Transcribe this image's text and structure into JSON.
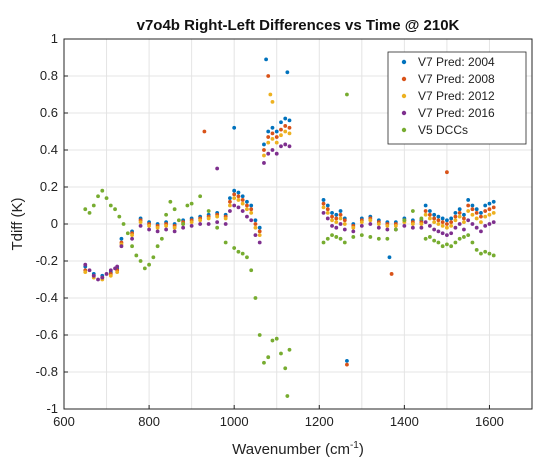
{
  "chart_data": {
    "type": "scatter",
    "title": "v7o4b Right-Left Differences vs Time @ 210K",
    "xlabel": "Wavenumber (cm",
    "xlabel_superscript": "-1",
    "xlabel_suffix": ")",
    "ylabel": "Tdiff (K)",
    "xlim": [
      600,
      1700
    ],
    "ylim": [
      -1,
      1
    ],
    "xticks": [
      600,
      800,
      1000,
      1200,
      1400,
      1600
    ],
    "yticks": [
      -1,
      -0.8,
      -0.6,
      -0.4,
      -0.2,
      0,
      0.2,
      0.4,
      0.6,
      0.8,
      1
    ],
    "xtick_labels": [
      "600",
      "800",
      "1000",
      "1200",
      "1400",
      "1600"
    ],
    "ytick_labels": [
      "-1",
      "-0.8",
      "-0.6",
      "-0.4",
      "-0.2",
      "0",
      "0.2",
      "0.4",
      "0.6",
      "0.8",
      "1"
    ],
    "grid": true,
    "legend_position": "top-right",
    "series": [
      {
        "name": "V7 Pred: 2004",
        "color": "#0072BD",
        "x": [
          650,
          670,
          690,
          710,
          725,
          735,
          760,
          780,
          800,
          820,
          840,
          860,
          880,
          900,
          920,
          940,
          960,
          980,
          990,
          1000,
          1010,
          1020,
          1030,
          1040,
          1050,
          1060,
          1070,
          1080,
          1090,
          1100,
          1110,
          1120,
          1130,
          1210,
          1220,
          1230,
          1240,
          1250,
          1260,
          1280,
          1300,
          1320,
          1340,
          1360,
          1380,
          1400,
          1420,
          1440,
          1450,
          1460,
          1470,
          1480,
          1490,
          1500,
          1510,
          1520,
          1530,
          1540,
          1550,
          1560,
          1570,
          1580,
          1590,
          1600,
          1610,
          1075,
          1125,
          1000,
          1265,
          1365
        ],
        "y": [
          -0.23,
          -0.27,
          -0.28,
          -0.26,
          -0.24,
          -0.08,
          -0.04,
          0.03,
          0.01,
          0.0,
          0.01,
          0.0,
          0.02,
          0.03,
          0.04,
          0.05,
          0.06,
          0.05,
          0.14,
          0.18,
          0.17,
          0.15,
          0.12,
          0.1,
          0.02,
          -0.02,
          0.43,
          0.5,
          0.52,
          0.5,
          0.55,
          0.57,
          0.56,
          0.13,
          0.1,
          0.06,
          0.05,
          0.07,
          0.03,
          0.0,
          0.03,
          0.04,
          0.02,
          0.01,
          0.01,
          0.03,
          0.02,
          0.02,
          0.1,
          0.07,
          0.05,
          0.04,
          0.03,
          0.02,
          0.03,
          0.06,
          0.08,
          0.05,
          0.13,
          0.1,
          0.08,
          0.06,
          0.1,
          0.11,
          0.12,
          0.89,
          0.82,
          0.52,
          -0.74,
          -0.18
        ]
      },
      {
        "name": "V7 Pred: 2008",
        "color": "#D95319",
        "x": [
          650,
          670,
          690,
          710,
          725,
          735,
          760,
          780,
          800,
          820,
          840,
          860,
          880,
          900,
          920,
          940,
          960,
          980,
          990,
          1000,
          1010,
          1020,
          1030,
          1040,
          1050,
          1060,
          1070,
          1080,
          1090,
          1100,
          1110,
          1120,
          1130,
          1210,
          1220,
          1230,
          1240,
          1250,
          1260,
          1280,
          1300,
          1320,
          1340,
          1360,
          1380,
          1400,
          1420,
          1440,
          1450,
          1460,
          1470,
          1480,
          1490,
          1500,
          1510,
          1520,
          1530,
          1540,
          1550,
          1560,
          1570,
          1580,
          1590,
          1600,
          1610,
          1080,
          1500,
          930,
          1265,
          1370
        ],
        "y": [
          -0.25,
          -0.28,
          -0.29,
          -0.27,
          -0.25,
          -0.1,
          -0.05,
          0.02,
          0.0,
          -0.01,
          0.0,
          -0.01,
          0.01,
          0.02,
          0.03,
          0.04,
          0.05,
          0.04,
          0.12,
          0.16,
          0.15,
          0.13,
          0.1,
          0.08,
          0.0,
          -0.04,
          0.4,
          0.47,
          0.49,
          0.47,
          0.51,
          0.53,
          0.52,
          0.11,
          0.08,
          0.04,
          0.03,
          0.05,
          0.02,
          -0.01,
          0.02,
          0.03,
          0.01,
          0.0,
          0.0,
          0.02,
          0.01,
          0.01,
          0.07,
          0.05,
          0.03,
          0.02,
          0.01,
          0.0,
          0.01,
          0.04,
          0.06,
          0.03,
          0.1,
          0.08,
          0.06,
          0.04,
          0.07,
          0.08,
          0.09,
          0.8,
          0.28,
          0.5,
          -0.76,
          -0.27
        ]
      },
      {
        "name": "V7 Pred: 2012",
        "color": "#EDB120",
        "x": [
          650,
          670,
          690,
          710,
          725,
          735,
          760,
          780,
          800,
          820,
          840,
          860,
          880,
          900,
          920,
          940,
          960,
          980,
          990,
          1000,
          1010,
          1020,
          1030,
          1040,
          1050,
          1060,
          1070,
          1080,
          1090,
          1100,
          1110,
          1120,
          1130,
          1210,
          1220,
          1230,
          1240,
          1250,
          1260,
          1280,
          1300,
          1320,
          1340,
          1360,
          1380,
          1400,
          1420,
          1440,
          1450,
          1460,
          1470,
          1480,
          1490,
          1500,
          1510,
          1520,
          1530,
          1540,
          1550,
          1560,
          1570,
          1580,
          1590,
          1600,
          1610,
          1085,
          1090
        ],
        "y": [
          -0.26,
          -0.29,
          -0.3,
          -0.28,
          -0.26,
          -0.11,
          -0.06,
          0.01,
          -0.01,
          -0.02,
          -0.01,
          -0.02,
          0.0,
          0.01,
          0.02,
          0.03,
          0.04,
          0.03,
          0.1,
          0.14,
          0.13,
          0.11,
          0.08,
          0.06,
          -0.02,
          -0.06,
          0.37,
          0.44,
          0.46,
          0.44,
          0.48,
          0.5,
          0.49,
          0.09,
          0.06,
          0.02,
          0.01,
          0.03,
          0.0,
          -0.02,
          0.01,
          0.02,
          0.0,
          -0.01,
          -0.01,
          0.01,
          0.0,
          0.0,
          0.05,
          0.03,
          0.01,
          0.0,
          -0.01,
          -0.02,
          -0.01,
          0.02,
          0.04,
          0.01,
          0.07,
          0.05,
          0.03,
          0.01,
          0.04,
          0.05,
          0.06,
          0.7,
          0.66
        ]
      },
      {
        "name": "V7 Pred: 2016",
        "color": "#7E2F8E",
        "x": [
          650,
          660,
          670,
          680,
          690,
          700,
          710,
          720,
          725,
          735,
          760,
          780,
          800,
          820,
          840,
          860,
          880,
          900,
          920,
          940,
          960,
          980,
          990,
          1000,
          1010,
          1020,
          1030,
          1040,
          1050,
          1060,
          1070,
          1080,
          1090,
          1100,
          1110,
          1120,
          1130,
          1210,
          1220,
          1230,
          1240,
          1250,
          1260,
          1280,
          1300,
          1320,
          1340,
          1360,
          1380,
          1400,
          1420,
          1440,
          1450,
          1460,
          1470,
          1480,
          1490,
          1500,
          1510,
          1520,
          1530,
          1540,
          1550,
          1560,
          1570,
          1580,
          1590,
          1600,
          1610,
          960
        ],
        "y": [
          -0.22,
          -0.25,
          -0.28,
          -0.3,
          -0.29,
          -0.27,
          -0.25,
          -0.24,
          -0.23,
          -0.12,
          -0.08,
          -0.01,
          -0.03,
          -0.04,
          -0.03,
          -0.04,
          -0.02,
          -0.01,
          0.0,
          0.0,
          0.01,
          0.0,
          0.07,
          0.1,
          0.09,
          0.07,
          0.04,
          0.02,
          -0.06,
          -0.1,
          0.33,
          0.38,
          0.4,
          0.38,
          0.42,
          0.43,
          0.42,
          0.06,
          0.03,
          -0.01,
          -0.02,
          0.0,
          -0.03,
          -0.04,
          -0.01,
          0.0,
          -0.02,
          -0.03,
          -0.03,
          -0.01,
          -0.02,
          -0.02,
          0.01,
          -0.01,
          -0.03,
          -0.04,
          -0.05,
          -0.06,
          -0.05,
          -0.02,
          0.0,
          -0.03,
          0.02,
          0.0,
          -0.02,
          -0.04,
          -0.01,
          0.0,
          0.01,
          0.3
        ]
      },
      {
        "name": "V5 DCCs",
        "color": "#77AC30",
        "x": [
          650,
          660,
          670,
          680,
          690,
          700,
          710,
          720,
          730,
          740,
          750,
          760,
          770,
          780,
          790,
          800,
          810,
          820,
          830,
          840,
          850,
          860,
          870,
          880,
          890,
          900,
          920,
          940,
          960,
          980,
          1000,
          1010,
          1020,
          1030,
          1040,
          1050,
          1060,
          1070,
          1080,
          1090,
          1100,
          1110,
          1120,
          1130,
          1210,
          1220,
          1230,
          1240,
          1250,
          1260,
          1280,
          1300,
          1320,
          1340,
          1360,
          1380,
          1400,
          1420,
          1440,
          1450,
          1460,
          1470,
          1480,
          1490,
          1500,
          1510,
          1520,
          1530,
          1540,
          1550,
          1560,
          1570,
          1580,
          1590,
          1600,
          1610,
          1265,
          1125
        ],
        "y": [
          0.08,
          0.06,
          0.1,
          0.15,
          0.18,
          0.14,
          0.1,
          0.08,
          0.04,
          0.0,
          -0.05,
          -0.12,
          -0.17,
          -0.2,
          -0.24,
          -0.22,
          -0.18,
          -0.12,
          -0.08,
          0.05,
          0.12,
          0.08,
          0.02,
          0.0,
          0.1,
          0.11,
          0.15,
          0.07,
          -0.02,
          -0.1,
          -0.13,
          -0.15,
          -0.16,
          -0.18,
          -0.25,
          -0.4,
          -0.6,
          -0.75,
          -0.72,
          -0.63,
          -0.62,
          -0.7,
          -0.78,
          -0.68,
          -0.1,
          -0.08,
          -0.06,
          -0.07,
          -0.08,
          -0.1,
          -0.07,
          -0.06,
          -0.07,
          -0.08,
          -0.08,
          -0.03,
          0.02,
          0.07,
          0.03,
          -0.08,
          -0.07,
          -0.09,
          -0.1,
          -0.12,
          -0.11,
          -0.12,
          -0.1,
          -0.08,
          -0.07,
          -0.06,
          -0.1,
          -0.14,
          -0.16,
          -0.15,
          -0.16,
          -0.17,
          0.7,
          -0.93
        ]
      }
    ]
  }
}
